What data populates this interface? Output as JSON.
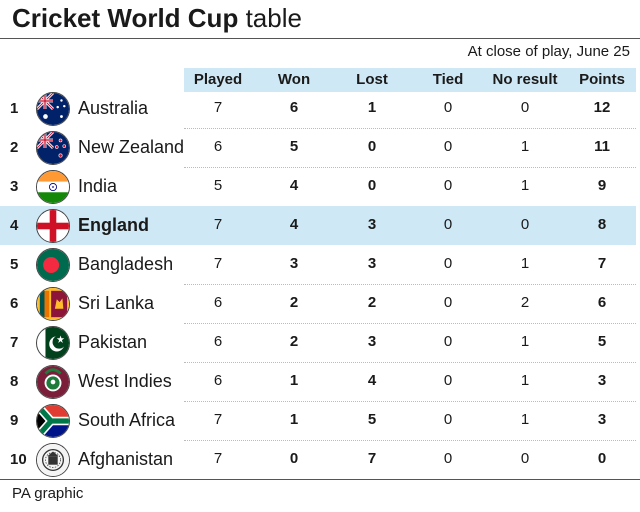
{
  "title": {
    "bold": "Cricket World Cup",
    "rest": "table"
  },
  "subtitle": "At close of play, June 25",
  "columns": {
    "played": "Played",
    "won": "Won",
    "lost": "Lost",
    "tied": "Tied",
    "no_result": "No result",
    "points": "Points"
  },
  "rows": [
    {
      "rank": "1",
      "team": "Australia",
      "flag": "australia-flag-icon",
      "played": "7",
      "won": "6",
      "lost": "1",
      "tied": "0",
      "no_result": "0",
      "points": "12"
    },
    {
      "rank": "2",
      "team": "New Zealand",
      "flag": "new-zealand-flag-icon",
      "played": "6",
      "won": "5",
      "lost": "0",
      "tied": "0",
      "no_result": "1",
      "points": "11"
    },
    {
      "rank": "3",
      "team": "India",
      "flag": "india-flag-icon",
      "played": "5",
      "won": "4",
      "lost": "0",
      "tied": "0",
      "no_result": "1",
      "points": "9"
    },
    {
      "rank": "4",
      "team": "England",
      "flag": "england-flag-icon",
      "played": "7",
      "won": "4",
      "lost": "3",
      "tied": "0",
      "no_result": "0",
      "points": "8",
      "highlighted": true
    },
    {
      "rank": "5",
      "team": "Bangladesh",
      "flag": "bangladesh-flag-icon",
      "played": "7",
      "won": "3",
      "lost": "3",
      "tied": "0",
      "no_result": "1",
      "points": "7"
    },
    {
      "rank": "6",
      "team": "Sri Lanka",
      "flag": "sri-lanka-flag-icon",
      "played": "6",
      "won": "2",
      "lost": "2",
      "tied": "0",
      "no_result": "2",
      "points": "6"
    },
    {
      "rank": "7",
      "team": "Pakistan",
      "flag": "pakistan-flag-icon",
      "played": "6",
      "won": "2",
      "lost": "3",
      "tied": "0",
      "no_result": "1",
      "points": "5"
    },
    {
      "rank": "8",
      "team": "West Indies",
      "flag": "west-indies-flag-icon",
      "played": "6",
      "won": "1",
      "lost": "4",
      "tied": "0",
      "no_result": "1",
      "points": "3"
    },
    {
      "rank": "9",
      "team": "South Africa",
      "flag": "south-africa-flag-icon",
      "played": "7",
      "won": "1",
      "lost": "5",
      "tied": "0",
      "no_result": "1",
      "points": "3"
    },
    {
      "rank": "10",
      "team": "Afghanistan",
      "flag": "afghanistan-flag-icon",
      "played": "7",
      "won": "0",
      "lost": "7",
      "tied": "0",
      "no_result": "0",
      "points": "0"
    }
  ],
  "colors": {
    "header_bg": "#cfe8f5",
    "highlight_bg": "#cfe8f5"
  },
  "footer": "PA graphic"
}
